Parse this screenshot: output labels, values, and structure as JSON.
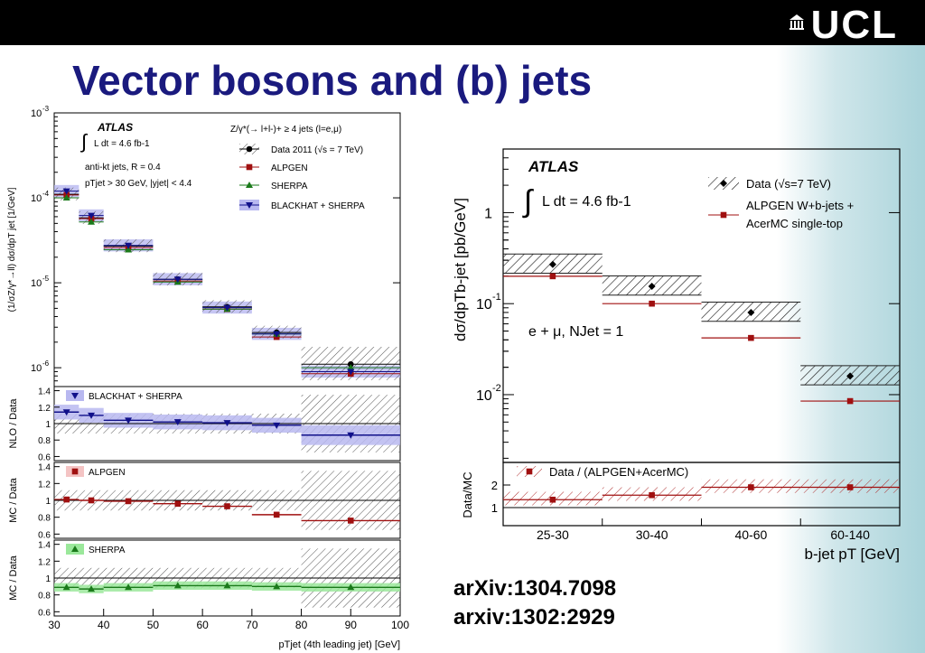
{
  "slide": {
    "title": "Vector bosons and (b) jets",
    "logo_text": "UCL",
    "refs": [
      "arXiv:1304.7098",
      "arxiv:1302:2929"
    ]
  },
  "colors": {
    "title": "#1a1a7e",
    "data": "#000000",
    "alpgen": "#a01010",
    "sherpa": "#1a7a1a",
    "blackhat": "#10108a",
    "blackhat_band": "#b8b8f0",
    "sherpa_band": "#9be89b"
  },
  "chart_data": [
    {
      "type": "scatter",
      "panel": "main",
      "ylabel": "(1/σZ/γ*→ll) dσ/dpT jet [1/GeV]",
      "yscale": "log",
      "ylim": [
        6e-07,
        0.001
      ],
      "xlim": [
        30,
        100
      ],
      "ytick_labels": [
        "10-3",
        "10-4",
        "10-5",
        "10-6"
      ],
      "annotations": [
        "ATLAS",
        "∫ L dt = 4.6 fb-1",
        "anti-kt jets, R = 0.4",
        "pTjet > 30 GeV, |yjet| < 4.4",
        "Z/γ*(→ l+l-)+ ≥ 4 jets (l=e,μ)"
      ],
      "legend": [
        "Data 2011 (√s = 7 TeV)",
        "ALPGEN",
        "SHERPA",
        "BLACKHAT + SHERPA"
      ],
      "bins": [
        [
          30,
          35
        ],
        [
          35,
          40
        ],
        [
          40,
          50
        ],
        [
          50,
          60
        ],
        [
          60,
          70
        ],
        [
          70,
          80
        ],
        [
          80,
          100
        ]
      ],
      "x": [
        32.5,
        37.5,
        45,
        55,
        65,
        75,
        90
      ],
      "series": [
        {
          "name": "Data 2011 (√s = 7 TeV)",
          "values": [
            0.00011,
            5.8e-05,
            2.7e-05,
            1.1e-05,
            5.2e-06,
            2.6e-06,
            1.1e-06
          ]
        },
        {
          "name": "ALPGEN",
          "values": [
            0.000108,
            5.7e-05,
            2.6e-05,
            1.05e-05,
            4.9e-06,
            2.3e-06,
            8.5e-07
          ]
        },
        {
          "name": "SHERPA",
          "values": [
            0.0001,
            5.2e-05,
            2.45e-05,
            1.02e-05,
            4.9e-06,
            2.5e-06,
            1e-06
          ]
        },
        {
          "name": "BLACKHAT + SHERPA",
          "values": [
            0.00012,
            6.2e-05,
            2.75e-05,
            1.1e-05,
            5.1e-06,
            2.5e-06,
            9e-07
          ]
        }
      ]
    },
    {
      "type": "scatter",
      "panel": "ratio-nlo",
      "ylabel": "NLO / Data",
      "ylim": [
        0.55,
        1.45
      ],
      "ytick_labels": [
        "1.4",
        "1.2",
        "1",
        "0.8",
        "0.6"
      ],
      "legend": [
        "BLACKHAT + SHERPA"
      ],
      "x": [
        32.5,
        37.5,
        45,
        55,
        65,
        75,
        90
      ],
      "values": [
        1.14,
        1.1,
        1.04,
        1.02,
        1.01,
        0.98,
        0.86
      ]
    },
    {
      "type": "scatter",
      "panel": "ratio-alpgen",
      "ylabel": "MC / Data",
      "ylim": [
        0.55,
        1.45
      ],
      "ytick_labels": [
        "1.4",
        "1.2",
        "1",
        "0.8",
        "0.6"
      ],
      "legend": [
        "ALPGEN"
      ],
      "x": [
        32.5,
        37.5,
        45,
        55,
        65,
        75,
        90
      ],
      "values": [
        1.01,
        1.0,
        0.99,
        0.96,
        0.93,
        0.83,
        0.76
      ]
    },
    {
      "type": "scatter",
      "panel": "ratio-sherpa",
      "ylabel": "MC / Data",
      "ylim": [
        0.55,
        1.45
      ],
      "ytick_labels": [
        "1.4",
        "1.2",
        "1",
        "0.8",
        "0.6"
      ],
      "xlabel": "pTjet (4th leading jet) [GeV]",
      "xtick_labels": [
        "30",
        "40",
        "50",
        "60",
        "70",
        "80",
        "90",
        "100"
      ],
      "legend": [
        "SHERPA"
      ],
      "x": [
        32.5,
        37.5,
        45,
        55,
        65,
        75,
        90
      ],
      "values": [
        0.89,
        0.87,
        0.89,
        0.91,
        0.91,
        0.9,
        0.89
      ]
    },
    {
      "type": "scatter",
      "panel": "bjet-main",
      "ylabel": "dσ/dpTb-jet [pb/GeV]",
      "yscale": "log",
      "ylim": [
        0.0018,
        5
      ],
      "ytick_labels": [
        "1",
        "10-1",
        "10-2"
      ],
      "annotations": [
        "ATLAS",
        "∫ L dt = 4.6 fb-1",
        "e + μ, NJet = 1"
      ],
      "legend": [
        "Data (√s=7 TeV)",
        "ALPGEN W+b-jets + AcerMC single-top"
      ],
      "categories": [
        "25-30",
        "30-40",
        "40-60",
        "60-140"
      ],
      "series": [
        {
          "name": "Data (√s=7 TeV)",
          "values": [
            0.27,
            0.155,
            0.08,
            0.016
          ]
        },
        {
          "name": "ALPGEN W+b-jets + AcerMC single-top",
          "values": [
            0.2,
            0.1,
            0.042,
            0.0085
          ]
        }
      ]
    },
    {
      "type": "scatter",
      "panel": "bjet-ratio",
      "ylabel": "Data/MC",
      "ylim": [
        0.2,
        3.0
      ],
      "ytick_labels": [
        "2",
        "1"
      ],
      "xlabel": "b-jet pT [GeV]",
      "legend": [
        "Data / (ALPGEN+AcerMC)"
      ],
      "categories": [
        "25-30",
        "30-40",
        "40-60",
        "60-140"
      ],
      "values": [
        1.35,
        1.55,
        1.9,
        1.9
      ]
    }
  ]
}
